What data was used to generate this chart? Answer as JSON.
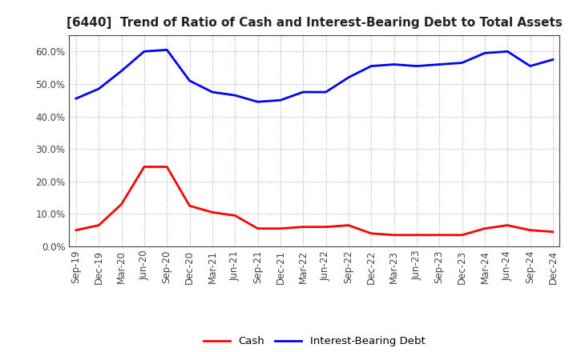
{
  "title": "[6440]  Trend of Ratio of Cash and Interest-Bearing Debt to Total Assets",
  "x_labels": [
    "Sep-19",
    "Dec-19",
    "Mar-20",
    "Jun-20",
    "Sep-20",
    "Dec-20",
    "Mar-21",
    "Jun-21",
    "Sep-21",
    "Dec-21",
    "Mar-22",
    "Jun-22",
    "Sep-22",
    "Dec-22",
    "Mar-23",
    "Jun-23",
    "Sep-23",
    "Dec-23",
    "Mar-24",
    "Jun-24",
    "Sep-24",
    "Dec-24"
  ],
  "cash": [
    5.0,
    6.5,
    13.0,
    24.5,
    24.5,
    12.5,
    10.5,
    9.5,
    5.5,
    5.5,
    6.0,
    6.0,
    6.5,
    4.0,
    3.5,
    3.5,
    3.5,
    3.5,
    5.5,
    6.5,
    5.0,
    4.5
  ],
  "interest_bearing_debt": [
    45.5,
    48.5,
    54.0,
    60.0,
    60.5,
    51.0,
    47.5,
    46.5,
    44.5,
    45.0,
    47.5,
    47.5,
    52.0,
    55.5,
    56.0,
    55.5,
    56.0,
    56.5,
    59.5,
    60.0,
    55.5,
    57.5
  ],
  "cash_color": "#ff0000",
  "debt_color": "#0000ff",
  "background_color": "#ffffff",
  "grid_color": "#999999",
  "ylim": [
    0,
    65
  ],
  "yticks": [
    0.0,
    10.0,
    20.0,
    30.0,
    40.0,
    50.0,
    60.0
  ],
  "legend_cash": "Cash",
  "legend_debt": "Interest-Bearing Debt",
  "title_fontsize": 11,
  "tick_fontsize": 8.5,
  "line_width": 2.0
}
